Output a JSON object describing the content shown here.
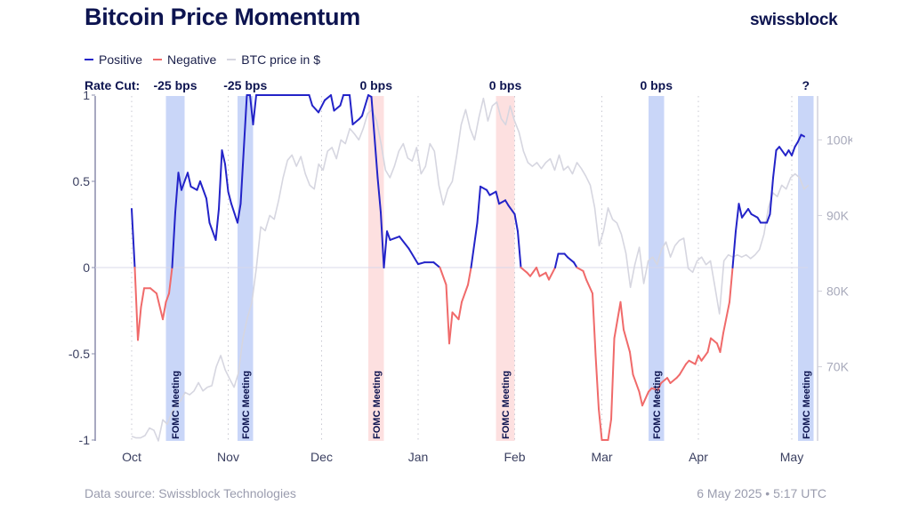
{
  "header": {
    "title": "Bitcoin Price Momentum",
    "logo": "swissblock"
  },
  "legend": [
    {
      "label": "Positive",
      "color": "#2323c8"
    },
    {
      "label": "Negative",
      "color": "#f06a6a"
    },
    {
      "label": "BTC price in $",
      "color": "#d6d6e0"
    }
  ],
  "footer": {
    "source": "Data source: Swissblock Technologies",
    "timestamp": "6 May 2025 • 5:17 UTC"
  },
  "chart_data": {
    "type": "line",
    "title": "Bitcoin Price Momentum",
    "x_ticks": [
      {
        "label": "Oct",
        "date": "2024-10-01"
      },
      {
        "label": "Nov",
        "date": "2024-11-01"
      },
      {
        "label": "Dec",
        "date": "2024-12-01"
      },
      {
        "label": "Jan",
        "date": "2025-01-01"
      },
      {
        "label": "Feb",
        "date": "2025-02-01"
      },
      {
        "label": "Mar",
        "date": "2025-03-01"
      },
      {
        "label": "Apr",
        "date": "2025-04-01"
      },
      {
        "label": "May",
        "date": "2025-05-01"
      }
    ],
    "left_axis": {
      "ylim": [
        -1,
        1
      ],
      "ticks": [
        {
          "v": 1,
          "label": "1"
        },
        {
          "v": 0.5,
          "label": "0.5"
        },
        {
          "v": 0,
          "label": "0"
        },
        {
          "v": -0.5,
          "label": "-0.5"
        },
        {
          "v": -1,
          "label": "-1"
        }
      ]
    },
    "right_axis": {
      "unit": "K $",
      "ylim": [
        60.2,
        105.8
      ],
      "ticks": [
        {
          "v": 100,
          "label": "100K"
        },
        {
          "v": 90,
          "label": "90K"
        },
        {
          "v": 80,
          "label": "80K"
        },
        {
          "v": 70,
          "label": "70K"
        }
      ]
    },
    "grid": "vertical dotted at month starts",
    "legend_placement": "top-left",
    "rate_cut_prefix": "Rate Cut:",
    "fomc_meetings": [
      {
        "start": "2024-10-12",
        "end": "2024-10-18",
        "rate_label": "-25 bps",
        "momentum": "positive",
        "label": "FOMC Meeting"
      },
      {
        "start": "2024-11-04",
        "end": "2024-11-09",
        "rate_label": "-25 bps",
        "momentum": "positive",
        "label": "FOMC Meeting"
      },
      {
        "start": "2024-12-16",
        "end": "2024-12-21",
        "rate_label": "0 bps",
        "momentum": "negative",
        "label": "FOMC Meeting"
      },
      {
        "start": "2025-01-26",
        "end": "2025-02-01",
        "rate_label": "0 bps",
        "momentum": "negative",
        "label": "FOMC Meeting"
      },
      {
        "start": "2025-03-16",
        "end": "2025-03-21",
        "rate_label": "0 bps",
        "momentum": "positive",
        "label": "FOMC Meeting"
      },
      {
        "start": "2025-05-03",
        "end": "2025-05-08",
        "rate_label": "?",
        "momentum": "positive",
        "label": "FOMC Meeting"
      }
    ],
    "band_colors": {
      "positive": "#c9d6f8",
      "negative": "#fde0e0"
    },
    "series": [
      {
        "name": "Positive / Negative",
        "axis": "left",
        "colors": {
          "positive": "#2323c8",
          "negative": "#f06a6a"
        },
        "points": [
          [
            "2024-10-01",
            0.34
          ],
          [
            "2024-10-02",
            0
          ],
          [
            "2024-10-03",
            -0.42
          ],
          [
            "2024-10-04",
            -0.23
          ],
          [
            "2024-10-05",
            -0.12
          ],
          [
            "2024-10-07",
            -0.12
          ],
          [
            "2024-10-09",
            -0.15
          ],
          [
            "2024-10-11",
            -0.3
          ],
          [
            "2024-10-12",
            -0.2
          ],
          [
            "2024-10-13",
            -0.15
          ],
          [
            "2024-10-14",
            0
          ],
          [
            "2024-10-15",
            0.32
          ],
          [
            "2024-10-16",
            0.55
          ],
          [
            "2024-10-17",
            0.45
          ],
          [
            "2024-10-19",
            0.55
          ],
          [
            "2024-10-20",
            0.47
          ],
          [
            "2024-10-22",
            0.45
          ],
          [
            "2024-10-23",
            0.5
          ],
          [
            "2024-10-25",
            0.4
          ],
          [
            "2024-10-26",
            0.26
          ],
          [
            "2024-10-28",
            0.16
          ],
          [
            "2024-10-29",
            0.34
          ],
          [
            "2024-10-30",
            0.68
          ],
          [
            "2024-10-31",
            0.6
          ],
          [
            "2024-11-01",
            0.44
          ],
          [
            "2024-11-02",
            0.37
          ],
          [
            "2024-11-04",
            0.26
          ],
          [
            "2024-11-05",
            0.37
          ],
          [
            "2024-11-07",
            1
          ],
          [
            "2024-11-08",
            1
          ],
          [
            "2024-11-09",
            0.83
          ],
          [
            "2024-11-10",
            1
          ],
          [
            "2024-11-27",
            1
          ],
          [
            "2024-11-28",
            0.94
          ],
          [
            "2024-11-30",
            0.9
          ],
          [
            "2024-12-02",
            0.97
          ],
          [
            "2024-12-04",
            1
          ],
          [
            "2024-12-05",
            0.91
          ],
          [
            "2024-12-07",
            0.94
          ],
          [
            "2024-12-08",
            1
          ],
          [
            "2024-12-10",
            1
          ],
          [
            "2024-12-11",
            0.83
          ],
          [
            "2024-12-13",
            0.86
          ],
          [
            "2024-12-14",
            0.88
          ],
          [
            "2024-12-16",
            1
          ],
          [
            "2024-12-17",
            0.99
          ],
          [
            "2024-12-19",
            0.52
          ],
          [
            "2024-12-20",
            0.32
          ],
          [
            "2024-12-21",
            0
          ],
          [
            "2024-12-22",
            0.21
          ],
          [
            "2024-12-23",
            0.16
          ],
          [
            "2024-12-26",
            0.18
          ],
          [
            "2024-12-29",
            0.11
          ],
          [
            "2025-01-01",
            0.02
          ],
          [
            "2025-01-03",
            0.03
          ],
          [
            "2025-01-06",
            0.03
          ],
          [
            "2025-01-08",
            0
          ],
          [
            "2025-01-10",
            -0.1
          ],
          [
            "2025-01-11",
            -0.44
          ],
          [
            "2025-01-12",
            -0.26
          ],
          [
            "2025-01-14",
            -0.3
          ],
          [
            "2025-01-15",
            -0.2
          ],
          [
            "2025-01-17",
            -0.1
          ],
          [
            "2025-01-18",
            0
          ],
          [
            "2025-01-20",
            0.26
          ],
          [
            "2025-01-21",
            0.47
          ],
          [
            "2025-01-23",
            0.45
          ],
          [
            "2025-01-24",
            0.42
          ],
          [
            "2025-01-26",
            0.44
          ],
          [
            "2025-01-27",
            0.37
          ],
          [
            "2025-01-29",
            0.39
          ],
          [
            "2025-01-30",
            0.36
          ],
          [
            "2025-02-01",
            0.31
          ],
          [
            "2025-02-02",
            0.21
          ],
          [
            "2025-02-03",
            0
          ],
          [
            "2025-02-05",
            -0.03
          ],
          [
            "2025-02-06",
            -0.05
          ],
          [
            "2025-02-08",
            0
          ],
          [
            "2025-02-09",
            -0.05
          ],
          [
            "2025-02-11",
            -0.03
          ],
          [
            "2025-02-12",
            -0.07
          ],
          [
            "2025-02-14",
            0
          ],
          [
            "2025-02-15",
            0.08
          ],
          [
            "2025-02-17",
            0.08
          ],
          [
            "2025-02-18",
            0.06
          ],
          [
            "2025-02-20",
            0.03
          ],
          [
            "2025-02-21",
            0
          ],
          [
            "2025-02-23",
            -0.02
          ],
          [
            "2025-02-24",
            -0.07
          ],
          [
            "2025-02-26",
            -0.15
          ],
          [
            "2025-02-27",
            -0.51
          ],
          [
            "2025-02-28",
            -0.82
          ],
          [
            "2025-03-01",
            -1
          ],
          [
            "2025-03-03",
            -1
          ],
          [
            "2025-03-04",
            -0.88
          ],
          [
            "2025-03-05",
            -0.41
          ],
          [
            "2025-03-07",
            -0.2
          ],
          [
            "2025-03-08",
            -0.36
          ],
          [
            "2025-03-10",
            -0.49
          ],
          [
            "2025-03-11",
            -0.62
          ],
          [
            "2025-03-13",
            -0.72
          ],
          [
            "2025-03-14",
            -0.8
          ],
          [
            "2025-03-16",
            -0.72
          ],
          [
            "2025-03-17",
            -0.7
          ],
          [
            "2025-03-19",
            -0.71
          ],
          [
            "2025-03-20",
            -0.67
          ],
          [
            "2025-03-22",
            -0.64
          ],
          [
            "2025-03-23",
            -0.67
          ],
          [
            "2025-03-25",
            -0.64
          ],
          [
            "2025-03-26",
            -0.62
          ],
          [
            "2025-03-28",
            -0.56
          ],
          [
            "2025-03-29",
            -0.54
          ],
          [
            "2025-03-31",
            -0.56
          ],
          [
            "2025-04-01",
            -0.51
          ],
          [
            "2025-04-02",
            -0.54
          ],
          [
            "2025-04-04",
            -0.49
          ],
          [
            "2025-04-05",
            -0.41
          ],
          [
            "2025-04-07",
            -0.44
          ],
          [
            "2025-04-08",
            -0.49
          ],
          [
            "2025-04-09",
            -0.38
          ],
          [
            "2025-04-11",
            -0.2
          ],
          [
            "2025-04-12",
            0
          ],
          [
            "2025-04-13",
            0.21
          ],
          [
            "2025-04-14",
            0.37
          ],
          [
            "2025-04-15",
            0.29
          ],
          [
            "2025-04-17",
            0.34
          ],
          [
            "2025-04-18",
            0.31
          ],
          [
            "2025-04-20",
            0.29
          ],
          [
            "2025-04-21",
            0.26
          ],
          [
            "2025-04-23",
            0.26
          ],
          [
            "2025-04-24",
            0.31
          ],
          [
            "2025-04-25",
            0.52
          ],
          [
            "2025-04-26",
            0.68
          ],
          [
            "2025-04-27",
            0.7
          ],
          [
            "2025-04-29",
            0.65
          ],
          [
            "2025-04-30",
            0.68
          ],
          [
            "2025-05-01",
            0.65
          ],
          [
            "2025-05-02",
            0.7
          ],
          [
            "2025-05-03",
            0.73
          ],
          [
            "2025-05-04",
            0.77
          ],
          [
            "2025-05-05",
            0.76
          ]
        ]
      },
      {
        "name": "BTC price in $",
        "axis": "right",
        "unit": "K $",
        "color": "#d6d6e0",
        "start": "2024-10-01",
        "step_days": 1.43,
        "values": [
          60.8,
          60.6,
          60.6,
          60.9,
          61.9,
          61.6,
          60.2,
          63.0,
          62.4,
          63.9,
          65.0,
          65.5,
          66.6,
          66.3,
          66.8,
          67.9,
          66.8,
          67.3,
          67.5,
          70.0,
          71.5,
          69.6,
          68.4,
          67.3,
          69.2,
          73.8,
          76.5,
          78.5,
          83.0,
          88.5,
          88.0,
          90.0,
          89.5,
          92.0,
          95.0,
          97.3,
          98.0,
          96.5,
          97.8,
          95.5,
          94.0,
          93.5,
          96.8,
          96.0,
          98.5,
          99.0,
          97.5,
          100.0,
          99.5,
          101.5,
          100.8,
          100.0,
          101.5,
          103.5,
          104.0,
          102.5,
          99.5,
          96.0,
          95.0,
          96.5,
          98.5,
          99.5,
          97.6,
          97.2,
          99.0,
          95.5,
          96.5,
          99.5,
          98.5,
          94.0,
          91.4,
          93.5,
          94.5,
          98.0,
          102.0,
          104.0,
          101.5,
          100.0,
          103.0,
          105.5,
          102.5,
          104.5,
          105.0,
          102.8,
          102.0,
          104.5,
          102.5,
          101.0,
          98.5,
          97.0,
          96.5,
          97.0,
          96.2,
          97.0,
          97.5,
          96.0,
          98.0,
          96.0,
          96.5,
          95.5,
          97.0,
          96.2,
          95.2,
          94.0,
          91.0,
          86.0,
          88.0,
          91.0,
          89.5,
          89.0,
          87.5,
          85.0,
          80.5,
          83.5,
          85.8,
          81.0,
          84.0,
          84.5,
          83.5,
          85.5,
          86.5,
          84.5,
          86.0,
          86.7,
          87.0,
          83.0,
          82.5,
          84.0,
          84.5,
          83.5,
          84.0,
          80.5,
          77.0,
          84.0,
          84.8,
          84.5,
          84.8,
          84.5,
          84.8,
          84.3,
          84.8,
          85.5,
          87.5,
          91.0,
          93.0,
          92.5,
          94.0,
          93.5,
          95.0,
          95.5,
          95.0,
          93.5,
          94.0
        ]
      }
    ]
  }
}
